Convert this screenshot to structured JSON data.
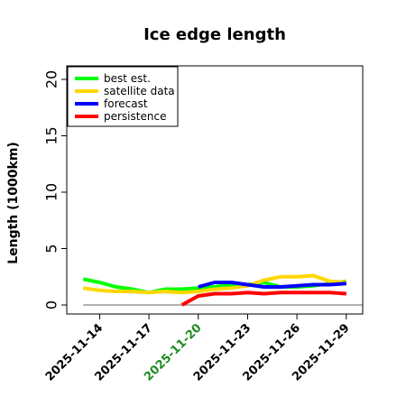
{
  "chart_data": {
    "type": "line",
    "title": "Ice edge length",
    "xlabel": "",
    "ylabel": "Length (1000km)",
    "ylim": [
      -0.8,
      21.2
    ],
    "yticks": [
      0,
      5,
      10,
      15,
      20
    ],
    "xlim": [
      "2025-11-12",
      "2025-11-30"
    ],
    "xticks": [
      "2025-11-14",
      "2025-11-17",
      "2025-11-20",
      "2025-11-23",
      "2025-11-26",
      "2025-11-29"
    ],
    "highlight_tick": "2025-11-20",
    "highlight_color": "#1e8a1e",
    "grid": false,
    "legend_position": "top-left",
    "reference_line": {
      "y": 0,
      "from": "2025-11-13",
      "to": "2025-11-30",
      "color": "#808080"
    },
    "series": [
      {
        "name": "best est.",
        "color": "#00ff00",
        "points": [
          [
            "2025-11-13",
            2.3
          ],
          [
            "2025-11-14",
            2.0
          ],
          [
            "2025-11-15",
            1.6
          ],
          [
            "2025-11-16",
            1.4
          ],
          [
            "2025-11-17",
            1.1
          ],
          [
            "2025-11-18",
            1.4
          ],
          [
            "2025-11-19",
            1.4
          ],
          [
            "2025-11-20",
            1.5
          ],
          [
            "2025-11-21",
            1.6
          ],
          [
            "2025-11-22",
            1.8
          ],
          [
            "2025-11-23",
            1.8
          ],
          [
            "2025-11-24",
            2.0
          ],
          [
            "2025-11-25",
            1.6
          ],
          [
            "2025-11-26",
            1.6
          ],
          [
            "2025-11-27",
            1.7
          ],
          [
            "2025-11-28",
            1.9
          ],
          [
            "2025-11-29",
            2.1
          ]
        ]
      },
      {
        "name": "satellite data",
        "color": "#ffd700",
        "points": [
          [
            "2025-11-13",
            1.5
          ],
          [
            "2025-11-14",
            1.3
          ],
          [
            "2025-11-15",
            1.2
          ],
          [
            "2025-11-16",
            1.2
          ],
          [
            "2025-11-17",
            1.1
          ],
          [
            "2025-11-18",
            1.2
          ],
          [
            "2025-11-19",
            1.1
          ],
          [
            "2025-11-20",
            1.2
          ],
          [
            "2025-11-21",
            1.4
          ],
          [
            "2025-11-22",
            1.5
          ],
          [
            "2025-11-23",
            1.7
          ],
          [
            "2025-11-24",
            2.2
          ],
          [
            "2025-11-25",
            2.5
          ],
          [
            "2025-11-26",
            2.5
          ],
          [
            "2025-11-27",
            2.6
          ],
          [
            "2025-11-28",
            2.1
          ],
          [
            "2025-11-29",
            2.0
          ]
        ]
      },
      {
        "name": "forecast",
        "color": "#0000ff",
        "points": [
          [
            "2025-11-20",
            1.6
          ],
          [
            "2025-11-21",
            2.0
          ],
          [
            "2025-11-22",
            2.0
          ],
          [
            "2025-11-23",
            1.8
          ],
          [
            "2025-11-24",
            1.6
          ],
          [
            "2025-11-25",
            1.6
          ],
          [
            "2025-11-26",
            1.7
          ],
          [
            "2025-11-27",
            1.8
          ],
          [
            "2025-11-28",
            1.8
          ],
          [
            "2025-11-29",
            1.9
          ]
        ]
      },
      {
        "name": "persistence",
        "color": "#ff0000",
        "points": [
          [
            "2025-11-19",
            0.0
          ],
          [
            "2025-11-20",
            0.8
          ],
          [
            "2025-11-21",
            1.0
          ],
          [
            "2025-11-22",
            1.0
          ],
          [
            "2025-11-23",
            1.1
          ],
          [
            "2025-11-24",
            1.0
          ],
          [
            "2025-11-25",
            1.1
          ],
          [
            "2025-11-26",
            1.1
          ],
          [
            "2025-11-27",
            1.1
          ],
          [
            "2025-11-28",
            1.1
          ],
          [
            "2025-11-29",
            1.0
          ]
        ]
      }
    ]
  }
}
